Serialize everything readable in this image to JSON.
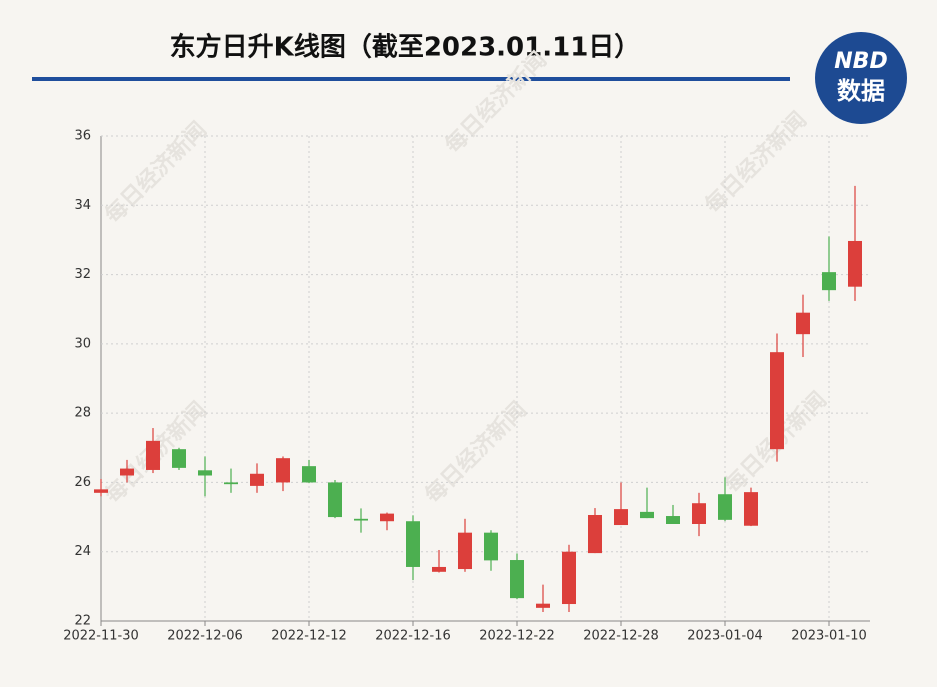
{
  "chart_data": {
    "type": "candlestick",
    "title": "东方日升K线图（截至2023.01.11日）",
    "logo": {
      "top": "NBD",
      "bottom": "数据"
    },
    "watermark": "每日经济新闻",
    "categories": [
      "2022-11-30",
      null,
      null,
      null,
      "2022-12-06",
      null,
      null,
      null,
      "2022-12-12",
      null,
      null,
      null,
      "2022-12-16",
      null,
      null,
      null,
      "2022-12-22",
      null,
      null,
      null,
      "2022-12-28",
      null,
      null,
      null,
      "2023-01-04",
      null,
      null,
      null,
      "2023-01-10",
      null
    ],
    "open": [
      25.7,
      26.2,
      26.36,
      26.96,
      26.35,
      26.0,
      25.9,
      26.0,
      26.47,
      26.0,
      24.95,
      24.88,
      24.88,
      23.42,
      23.5,
      24.55,
      23.76,
      22.38,
      22.49,
      23.96,
      24.77,
      25.15,
      25.03,
      24.8,
      25.66,
      24.75,
      26.96,
      30.28,
      32.07,
      31.65
    ],
    "high": [
      26.1,
      26.65,
      27.57,
      27.0,
      26.75,
      26.4,
      26.55,
      26.75,
      26.65,
      26.07,
      25.25,
      25.13,
      25.05,
      24.05,
      24.95,
      24.62,
      23.95,
      23.05,
      24.2,
      25.26,
      26.0,
      25.85,
      25.35,
      25.7,
      26.15,
      25.85,
      30.3,
      31.42,
      33.1,
      34.56
    ],
    "low": [
      25.6,
      26.0,
      26.27,
      26.36,
      25.6,
      25.7,
      25.7,
      25.75,
      25.98,
      24.97,
      24.55,
      24.62,
      23.18,
      23.4,
      23.42,
      23.45,
      22.63,
      22.26,
      22.26,
      23.96,
      24.77,
      24.97,
      24.8,
      24.45,
      24.88,
      24.74,
      26.6,
      29.62,
      31.24,
      31.24
    ],
    "close": [
      25.8,
      26.4,
      27.2,
      26.42,
      26.2,
      25.95,
      26.25,
      26.7,
      26.0,
      25.0,
      24.9,
      25.1,
      23.56,
      23.56,
      24.55,
      23.75,
      22.66,
      22.5,
      24.0,
      25.06,
      25.23,
      24.97,
      24.8,
      25.4,
      24.92,
      25.72,
      29.76,
      30.9,
      31.55,
      32.97
    ],
    "up_color": "#dc3f3b",
    "down_color": "#4caf50",
    "ylim": [
      22,
      36
    ],
    "yticks": [
      22,
      24,
      26,
      28,
      30,
      32,
      34,
      36
    ],
    "grid": true
  }
}
